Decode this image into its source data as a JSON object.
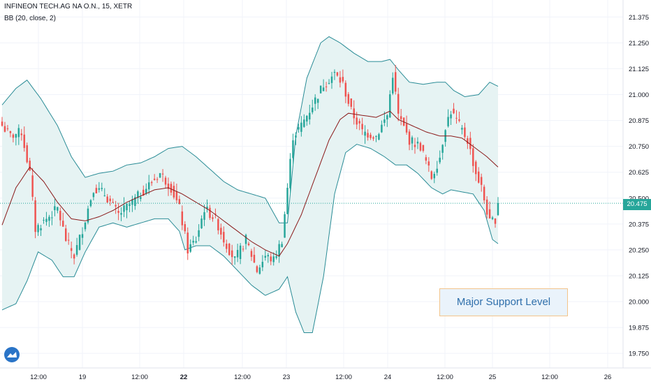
{
  "header": {
    "title": "INFINEON TECH.AG NA O.N., 15, XETR",
    "indicator": "BB (20, close, 2)"
  },
  "current_price": "20.475",
  "annotation": "Major Support Level",
  "colors": {
    "up": "#26a69a",
    "down": "#ef5350",
    "band": "#2a8c96",
    "basis": "#8b1a1a",
    "fill": "#e6f3f3"
  },
  "chart_data": {
    "type": "candlestick",
    "y_ticks": [
      "21.375",
      "21.250",
      "21.125",
      "21.000",
      "20.875",
      "20.750",
      "20.625",
      "20.500",
      "20.375",
      "20.250",
      "20.125",
      "20.000",
      "19.875",
      "19.750"
    ],
    "y_tick_values": [
      21.375,
      21.25,
      21.125,
      21.0,
      20.875,
      20.75,
      20.625,
      20.5,
      20.375,
      20.25,
      20.125,
      20.0,
      19.875,
      19.75
    ],
    "ylim": [
      19.71,
      21.43
    ],
    "x_tick_labels": [
      "12:00",
      "19",
      "12:00",
      "22",
      "12:00",
      "23",
      "12:00",
      "24",
      "12:00",
      "25",
      "12:00",
      "26"
    ],
    "x_tick_bold": [
      false,
      false,
      false,
      true,
      false,
      false,
      false,
      false,
      false,
      false,
      false,
      false
    ],
    "num_bars": 180,
    "last_price": 20.475,
    "close_anchors": [
      [
        0,
        20.85
      ],
      [
        3,
        20.8
      ],
      [
        7,
        20.82
      ],
      [
        10,
        20.62
      ],
      [
        12,
        20.35
      ],
      [
        16,
        20.4
      ],
      [
        20,
        20.45
      ],
      [
        23,
        20.3
      ],
      [
        26,
        20.22
      ],
      [
        29,
        20.35
      ],
      [
        33,
        20.55
      ],
      [
        37,
        20.52
      ],
      [
        42,
        20.42
      ],
      [
        47,
        20.48
      ],
      [
        52,
        20.55
      ],
      [
        57,
        20.62
      ],
      [
        61,
        20.55
      ],
      [
        64,
        20.45
      ],
      [
        67,
        20.25
      ],
      [
        70,
        20.3
      ],
      [
        73,
        20.45
      ],
      [
        77,
        20.4
      ],
      [
        80,
        20.3
      ],
      [
        84,
        20.2
      ],
      [
        88,
        20.3
      ],
      [
        92,
        20.15
      ],
      [
        95,
        20.22
      ],
      [
        98,
        20.2
      ],
      [
        101,
        20.3
      ],
      [
        103,
        20.55
      ],
      [
        105,
        20.8
      ],
      [
        108,
        20.85
      ],
      [
        112,
        20.95
      ],
      [
        116,
        21.05
      ],
      [
        120,
        21.1
      ],
      [
        123,
        21.05
      ],
      [
        126,
        20.92
      ],
      [
        130,
        20.82
      ],
      [
        135,
        20.8
      ],
      [
        139,
        20.9
      ],
      [
        141,
        21.1
      ],
      [
        143,
        20.9
      ],
      [
        147,
        20.78
      ],
      [
        151,
        20.75
      ],
      [
        155,
        20.6
      ],
      [
        158,
        20.7
      ],
      [
        160,
        20.85
      ],
      [
        162,
        20.92
      ],
      [
        165,
        20.85
      ],
      [
        168,
        20.78
      ],
      [
        171,
        20.62
      ],
      [
        173,
        20.55
      ],
      [
        176,
        20.38
      ],
      [
        178,
        20.4
      ],
      [
        179,
        20.475
      ]
    ],
    "basis_anchors": [
      [
        0,
        20.37
      ],
      [
        5,
        20.55
      ],
      [
        10,
        20.65
      ],
      [
        15,
        20.58
      ],
      [
        20,
        20.48
      ],
      [
        25,
        20.4
      ],
      [
        30,
        20.39
      ],
      [
        35,
        20.41
      ],
      [
        40,
        20.44
      ],
      [
        45,
        20.48
      ],
      [
        50,
        20.51
      ],
      [
        55,
        20.54
      ],
      [
        60,
        20.55
      ],
      [
        65,
        20.52
      ],
      [
        70,
        20.48
      ],
      [
        75,
        20.44
      ],
      [
        80,
        20.39
      ],
      [
        85,
        20.34
      ],
      [
        90,
        20.29
      ],
      [
        95,
        20.25
      ],
      [
        100,
        20.22
      ],
      [
        103,
        20.28
      ],
      [
        108,
        20.42
      ],
      [
        113,
        20.6
      ],
      [
        118,
        20.78
      ],
      [
        122,
        20.88
      ],
      [
        125,
        20.91
      ],
      [
        130,
        20.9
      ],
      [
        135,
        20.89
      ],
      [
        140,
        20.92
      ],
      [
        143,
        20.88
      ],
      [
        148,
        20.85
      ],
      [
        153,
        20.82
      ],
      [
        158,
        20.8
      ],
      [
        162,
        20.8
      ],
      [
        166,
        20.79
      ],
      [
        170,
        20.75
      ],
      [
        175,
        20.7
      ],
      [
        179,
        20.65
      ]
    ],
    "upper_anchors": [
      [
        0,
        20.95
      ],
      [
        5,
        21.03
      ],
      [
        9,
        21.07
      ],
      [
        14,
        20.98
      ],
      [
        20,
        20.85
      ],
      [
        25,
        20.7
      ],
      [
        30,
        20.6
      ],
      [
        35,
        20.62
      ],
      [
        40,
        20.63
      ],
      [
        45,
        20.66
      ],
      [
        50,
        20.67
      ],
      [
        55,
        20.7
      ],
      [
        60,
        20.74
      ],
      [
        65,
        20.75
      ],
      [
        70,
        20.7
      ],
      [
        75,
        20.64
      ],
      [
        80,
        20.58
      ],
      [
        85,
        20.54
      ],
      [
        90,
        20.52
      ],
      [
        95,
        20.5
      ],
      [
        100,
        20.38
      ],
      [
        103,
        20.38
      ],
      [
        106,
        20.8
      ],
      [
        110,
        21.08
      ],
      [
        115,
        21.25
      ],
      [
        118,
        21.28
      ],
      [
        122,
        21.25
      ],
      [
        127,
        21.2
      ],
      [
        132,
        21.16
      ],
      [
        137,
        21.16
      ],
      [
        140,
        21.17
      ],
      [
        143,
        21.12
      ],
      [
        147,
        21.06
      ],
      [
        152,
        21.05
      ],
      [
        157,
        21.06
      ],
      [
        160,
        21.06
      ],
      [
        163,
        21.02
      ],
      [
        167,
        20.99
      ],
      [
        172,
        21.0
      ],
      [
        176,
        21.06
      ],
      [
        179,
        21.04
      ]
    ],
    "lower_anchors": [
      [
        0,
        19.96
      ],
      [
        5,
        19.99
      ],
      [
        9,
        20.1
      ],
      [
        13,
        20.24
      ],
      [
        18,
        20.2
      ],
      [
        22,
        20.12
      ],
      [
        26,
        20.12
      ],
      [
        30,
        20.24
      ],
      [
        35,
        20.36
      ],
      [
        40,
        20.38
      ],
      [
        45,
        20.36
      ],
      [
        50,
        20.38
      ],
      [
        55,
        20.4
      ],
      [
        60,
        20.4
      ],
      [
        64,
        20.34
      ],
      [
        66,
        20.25
      ],
      [
        70,
        20.27
      ],
      [
        75,
        20.27
      ],
      [
        80,
        20.22
      ],
      [
        85,
        20.15
      ],
      [
        90,
        20.08
      ],
      [
        95,
        20.03
      ],
      [
        100,
        20.06
      ],
      [
        103,
        20.12
      ],
      [
        106,
        19.95
      ],
      [
        109,
        19.85
      ],
      [
        112,
        19.85
      ],
      [
        116,
        20.12
      ],
      [
        120,
        20.52
      ],
      [
        124,
        20.72
      ],
      [
        128,
        20.76
      ],
      [
        133,
        20.74
      ],
      [
        138,
        20.7
      ],
      [
        142,
        20.66
      ],
      [
        146,
        20.66
      ],
      [
        150,
        20.62
      ],
      [
        155,
        20.55
      ],
      [
        159,
        20.52
      ],
      [
        162,
        20.54
      ],
      [
        166,
        20.53
      ],
      [
        170,
        20.52
      ],
      [
        174,
        20.44
      ],
      [
        177,
        20.3
      ],
      [
        179,
        20.28
      ]
    ]
  }
}
